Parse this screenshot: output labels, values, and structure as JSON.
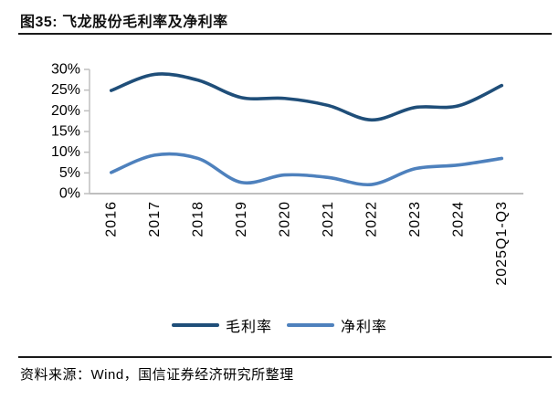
{
  "header": {
    "title": "图35: 飞龙股份毛利率及净利率"
  },
  "footer": {
    "source": "资料来源：Wind，国信证券经济研究所整理"
  },
  "colors": {
    "gross_margin_line": "#1F4E79",
    "net_margin_line": "#4E81BD",
    "axis": "#BFBFBF",
    "rule": "#1A1A1A",
    "text": "#000000"
  },
  "chart_data": {
    "type": "line",
    "title": "飞龙股份毛利率及净利率",
    "categories": [
      "2016",
      "2017",
      "2018",
      "2019",
      "2020",
      "2021",
      "2022",
      "2023",
      "2024",
      "2025Q1-Q3"
    ],
    "series": [
      {
        "name": "毛利率",
        "color": "#1F4E79",
        "values": [
          24.9,
          28.8,
          27.4,
          23.2,
          23.0,
          21.3,
          17.8,
          20.8,
          21.2,
          26.1
        ]
      },
      {
        "name": "净利率",
        "color": "#4E81BD",
        "values": [
          5.1,
          9.3,
          8.5,
          2.7,
          4.5,
          3.9,
          2.2,
          6.0,
          6.9,
          8.5
        ]
      }
    ],
    "ylim": [
      0,
      30
    ],
    "y_ticks": [
      "0%",
      "5%",
      "10%",
      "15%",
      "20%",
      "25%",
      "30%"
    ],
    "y_tick_step": 5,
    "xlabel": "",
    "ylabel": "",
    "grid": false,
    "smooth": true,
    "legend_position": "bottom",
    "x_label_rotation": -90
  }
}
